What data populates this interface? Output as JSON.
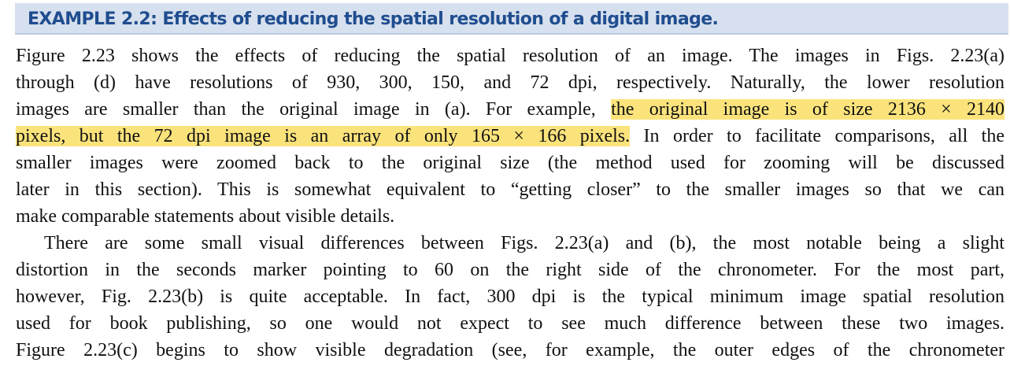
{
  "header": {
    "title": "EXAMPLE 2.2: Effects of reducing the spatial resolution of a digital image."
  },
  "paragraph1": {
    "line1": "Figure 2.23 shows the effects of reducing the spatial resolution of an image. The images in Figs. 2.23(a)",
    "line2": "through (d) have resolutions of 930, 300, 150, and 72 dpi, respectively. Naturally, the lower resolution",
    "line3_plain": "images are smaller than the original image in (a). For example, ",
    "line3_highlight": "the original image is of size 2136 × 2140",
    "line4_highlight": "pixels, but the 72 dpi image is an array of only 165 × 166 pixels.",
    "line4_plain": " In order to facilitate comparisons, all the",
    "line5": "smaller images were zoomed back to the original size (the method used for zooming will be discussed",
    "line6": "later in this section). This is somewhat equivalent to “getting closer” to the smaller images so that we can",
    "line7": "make comparable statements about visible details."
  },
  "paragraph2": {
    "line1": "There are some small visual differences between Figs. 2.23(a) and (b), the most notable being a slight",
    "line2": "distortion in the seconds marker pointing to 60 on the right side of the chronometer. For the most part,",
    "line3": "however, Fig. 2.23(b) is quite acceptable. In fact, 300 dpi is the typical minimum image spatial resolution",
    "line4": "used for book publishing, so one would not expect to see much difference between these two images.",
    "line5": "Figure 2.23(c) begins to show visible degradation (see, for example, the outer edges of the chronometer"
  },
  "colors": {
    "header_background": "#d7e0ee",
    "header_text": "#1f4d8f",
    "highlight": "#fbe37c",
    "body_text": "#111111"
  }
}
